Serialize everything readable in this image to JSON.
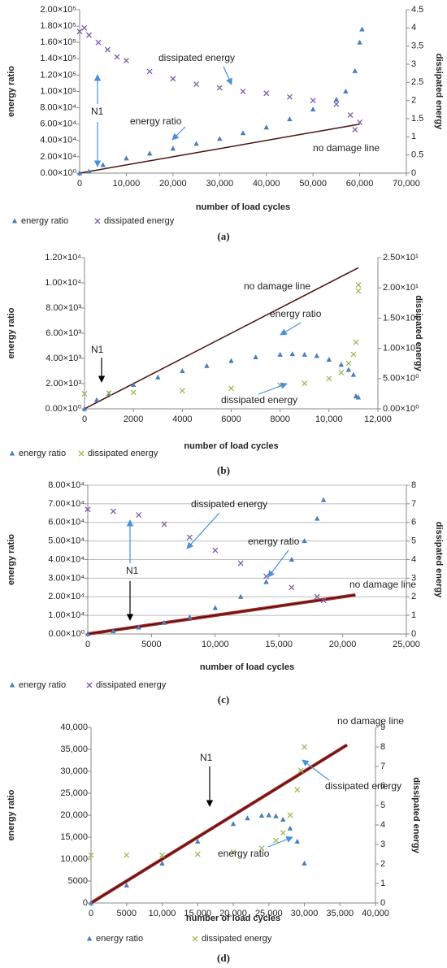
{
  "chart_data": [
    {
      "type": "scatter",
      "caption": "(a)",
      "x_label": "number of load cycles",
      "y_label": "energy ratio",
      "y2_label": "dissipated energy",
      "grid": false,
      "xlim": [
        0,
        70000
      ],
      "xticks": [
        0,
        {
          "value": 10000,
          "label": "10,000"
        },
        {
          "value": 20000,
          "label": "20,000"
        },
        {
          "value": 30000,
          "label": "30,000"
        },
        {
          "value": 40000,
          "label": "40,000"
        },
        {
          "value": 50000,
          "label": "50,000"
        },
        {
          "value": 60000,
          "label": "60,000"
        },
        {
          "value": 70000,
          "label": "70,000"
        }
      ],
      "ylim": [
        0,
        200000
      ],
      "yticks": [
        {
          "value": 0,
          "label": "0.00×10⁰"
        },
        {
          "value": 20000,
          "label": "2.00×10⁴"
        },
        {
          "value": 40000,
          "label": "4.00×10⁴"
        },
        {
          "value": 60000,
          "label": "6.00×10⁴"
        },
        {
          "value": 80000,
          "label": "8.00×10⁴"
        },
        {
          "value": 100000,
          "label": "1.00×10⁵"
        },
        {
          "value": 120000,
          "label": "1.20×10⁵"
        },
        {
          "value": 140000,
          "label": "1.40×10⁵"
        },
        {
          "value": 160000,
          "label": "1.60×10⁵"
        },
        {
          "value": 180000,
          "label": "1.80×10⁵"
        },
        {
          "value": 200000,
          "label": "2.00×10⁵"
        }
      ],
      "y2lim": [
        0,
        4.5
      ],
      "y2ticks": [
        0,
        0.5,
        1,
        1.5,
        2,
        2.5,
        3,
        3.5,
        4,
        4.5
      ],
      "series": [
        {
          "name": "energy ratio",
          "color": "#4a7ebb",
          "marker": "triangle",
          "x": [
            0,
            2000,
            5000,
            10000,
            15000,
            20000,
            25000,
            30000,
            35000,
            40000,
            45000,
            50000,
            55000,
            57000,
            59000,
            60000,
            60500
          ],
          "values": [
            0,
            2000,
            10000,
            18000,
            24000,
            30000,
            36000,
            42000,
            49000,
            56000,
            66000,
            78000,
            90000,
            100000,
            125000,
            160000,
            176000
          ]
        },
        {
          "name": "dissipated energy",
          "color": "#7d5ba6",
          "marker": "x",
          "axis": "y2",
          "x": [
            0,
            1000,
            2000,
            4000,
            6000,
            8000,
            10000,
            15000,
            20000,
            25000,
            30000,
            35000,
            40000,
            45000,
            50000,
            55000,
            58000,
            59000,
            60000
          ],
          "values": [
            3.9,
            4.0,
            3.8,
            3.6,
            3.4,
            3.2,
            3.1,
            2.8,
            2.6,
            2.45,
            2.35,
            2.25,
            2.2,
            2.1,
            2.0,
            1.9,
            1.6,
            1.2,
            1.4
          ]
        }
      ],
      "reference_line": {
        "label": "no damage line",
        "color": "#4a1010",
        "x": [
          0,
          60000
        ],
        "values": [
          0,
          60000
        ]
      },
      "annotations": [
        "dissipated energy",
        "energy ratio",
        "N1"
      ]
    },
    {
      "type": "scatter",
      "caption": "(b)",
      "x_label": "number of load cycles",
      "y_label": "energy ratio",
      "y2_label": "dissipated energy",
      "grid": false,
      "xlim": [
        0,
        12000
      ],
      "xticks": [
        0,
        2000,
        4000,
        6000,
        8000,
        {
          "value": 10000,
          "label": "10,000"
        },
        {
          "value": 12000,
          "label": "12,000"
        }
      ],
      "ylim": [
        0,
        12000
      ],
      "yticks": [
        {
          "value": 0,
          "label": "0.00×10⁰"
        },
        {
          "value": 2000,
          "label": "2.00×10³"
        },
        {
          "value": 4000,
          "label": "4.00×10³"
        },
        {
          "value": 6000,
          "label": "6.00×10³"
        },
        {
          "value": 8000,
          "label": "8.00×10³"
        },
        {
          "value": 10000,
          "label": "1.00×10⁴"
        },
        {
          "value": 12000,
          "label": "1.20×10⁴"
        }
      ],
      "y2lim": [
        0,
        25
      ],
      "y2ticks": [
        {
          "value": 0,
          "label": "0.00×10⁰"
        },
        {
          "value": 5,
          "label": "5.00×10⁰"
        },
        {
          "value": 10,
          "label": "1.00×10¹"
        },
        {
          "value": 15,
          "label": "1.50×10¹"
        },
        {
          "value": 20,
          "label": "2.00×10¹"
        },
        {
          "value": 25,
          "label": "2.50×10¹"
        }
      ],
      "series": [
        {
          "name": "energy ratio",
          "color": "#4a7ebb",
          "marker": "triangle",
          "x": [
            0,
            500,
            1000,
            2000,
            3000,
            4000,
            5000,
            6000,
            7000,
            8000,
            8500,
            9000,
            9500,
            10000,
            10500,
            10800,
            11000,
            11100,
            11200
          ],
          "values": [
            0,
            700,
            1200,
            1900,
            2500,
            3000,
            3400,
            3800,
            4100,
            4300,
            4350,
            4300,
            4200,
            3900,
            3500,
            3100,
            2700,
            1000,
            900
          ]
        },
        {
          "name": "dissipated energy",
          "color": "#9bbb59",
          "marker": "x",
          "axis": "y2",
          "x": [
            0,
            1000,
            2000,
            4000,
            6000,
            8000,
            9000,
            10000,
            10500,
            10800,
            11000,
            11100,
            11200,
            11200
          ],
          "values": [
            2.5,
            2.6,
            2.7,
            3.0,
            3.4,
            3.9,
            4.2,
            5.0,
            6.0,
            7.5,
            9,
            11,
            20.5,
            19.5
          ]
        }
      ],
      "reference_line": {
        "label": "no damage line",
        "color": "#4a1010",
        "x": [
          0,
          11200
        ],
        "values": [
          0,
          11200
        ]
      },
      "annotations": [
        "dissipated energy",
        "energy ratio",
        "N1"
      ]
    },
    {
      "type": "scatter",
      "caption": "(c)",
      "x_label": "number of load cycles",
      "y_label": "energy ratio",
      "y2_label": "dissipated energy",
      "grid": true,
      "xlim": [
        0,
        25000
      ],
      "xticks": [
        0,
        5000,
        {
          "value": 10000,
          "label": "10,000"
        },
        {
          "value": 15000,
          "label": "15,000"
        },
        {
          "value": 20000,
          "label": "20,000"
        },
        {
          "value": 25000,
          "label": "25,000"
        }
      ],
      "ylim": [
        0,
        80000
      ],
      "yticks": [
        {
          "value": 0,
          "label": "0.00×10⁰"
        },
        {
          "value": 10000,
          "label": "1.00×10⁴"
        },
        {
          "value": 20000,
          "label": "2.00×10⁴"
        },
        {
          "value": 30000,
          "label": "3.00×10⁴"
        },
        {
          "value": 40000,
          "label": "4.00×10⁴"
        },
        {
          "value": 50000,
          "label": "5.00×10⁴"
        },
        {
          "value": 60000,
          "label": "6.00×10⁴"
        },
        {
          "value": 70000,
          "label": "7.00×10⁴"
        },
        {
          "value": 80000,
          "label": "8.00×10⁴"
        }
      ],
      "y2lim": [
        0,
        8
      ],
      "y2ticks": [
        0,
        1,
        2,
        3,
        4,
        5,
        6,
        7,
        8
      ],
      "series": [
        {
          "name": "energy ratio",
          "color": "#4a7ebb",
          "marker": "triangle",
          "x": [
            0,
            2000,
            4000,
            6000,
            8000,
            10000,
            12000,
            14000,
            16000,
            17000,
            18000,
            18500
          ],
          "values": [
            0,
            1500,
            3500,
            6000,
            9000,
            14000,
            20000,
            28000,
            40000,
            50000,
            62000,
            72000
          ]
        },
        {
          "name": "dissipated energy",
          "color": "#7d5ba6",
          "marker": "x",
          "axis": "y2",
          "x": [
            0,
            2000,
            4000,
            6000,
            8000,
            10000,
            12000,
            14000,
            16000,
            18000,
            18500
          ],
          "values": [
            6.7,
            6.6,
            6.4,
            5.9,
            5.2,
            4.5,
            3.8,
            3.1,
            2.5,
            2.0,
            1.8
          ]
        }
      ],
      "reference_line": {
        "label": "no damage line",
        "color": "#a52a2a",
        "x": [
          0,
          21000
        ],
        "values": [
          0,
          21000
        ]
      },
      "annotations": [
        "dissipated energy",
        "energy ratio",
        "N1"
      ]
    },
    {
      "type": "scatter",
      "caption": "(d)",
      "x_label": "number of load cycles",
      "y_label": "energy ratio",
      "y2_label": "dissipated energy",
      "grid": false,
      "xlim": [
        0,
        40000
      ],
      "xticks": [
        0,
        5000,
        {
          "value": 10000,
          "label": "10,000"
        },
        {
          "value": 15000,
          "label": "15,000"
        },
        {
          "value": 20000,
          "label": "20,000"
        },
        {
          "value": 25000,
          "label": "25,000"
        },
        {
          "value": 30000,
          "label": "30,000"
        },
        {
          "value": 35000,
          "label": "35,000"
        },
        {
          "value": 40000,
          "label": "40,000"
        }
      ],
      "ylim": [
        0,
        40000
      ],
      "yticks": [
        0,
        5000,
        {
          "value": 10000,
          "label": "10,000"
        },
        {
          "value": 15000,
          "label": "15,000"
        },
        {
          "value": 20000,
          "label": "20,000"
        },
        {
          "value": 25000,
          "label": "25,000"
        },
        {
          "value": 30000,
          "label": "30,000"
        },
        {
          "value": 35000,
          "label": "35,000"
        },
        {
          "value": 40000,
          "label": "40,000"
        }
      ],
      "y2lim": [
        0,
        9
      ],
      "y2ticks": [
        0,
        1,
        2,
        3,
        4,
        5,
        6,
        7,
        8,
        9
      ],
      "series": [
        {
          "name": "energy ratio",
          "color": "#4a7ebb",
          "marker": "triangle",
          "x": [
            0,
            5000,
            10000,
            15000,
            20000,
            22000,
            24000,
            25000,
            26000,
            27000,
            28000,
            29000,
            30000
          ],
          "values": [
            0,
            4000,
            9000,
            14000,
            18000,
            19300,
            19900,
            20000,
            19800,
            19000,
            17000,
            14000,
            9000
          ]
        },
        {
          "name": "dissipated energy",
          "color": "#9bbb59",
          "marker": "x",
          "axis": "y2",
          "x": [
            0,
            5000,
            10000,
            15000,
            20000,
            24000,
            26000,
            27000,
            28000,
            29000,
            29500,
            30000
          ],
          "values": [
            2.45,
            2.45,
            2.45,
            2.5,
            2.6,
            2.8,
            3.2,
            3.6,
            4.5,
            5.8,
            6.8,
            8
          ]
        }
      ],
      "reference_line": {
        "label": "no damage line",
        "color": "#a52a2a",
        "x": [
          0,
          36000
        ],
        "values": [
          0,
          36000
        ]
      },
      "annotations": [
        "dissipated energy",
        "energy ratio",
        "N1"
      ]
    }
  ]
}
